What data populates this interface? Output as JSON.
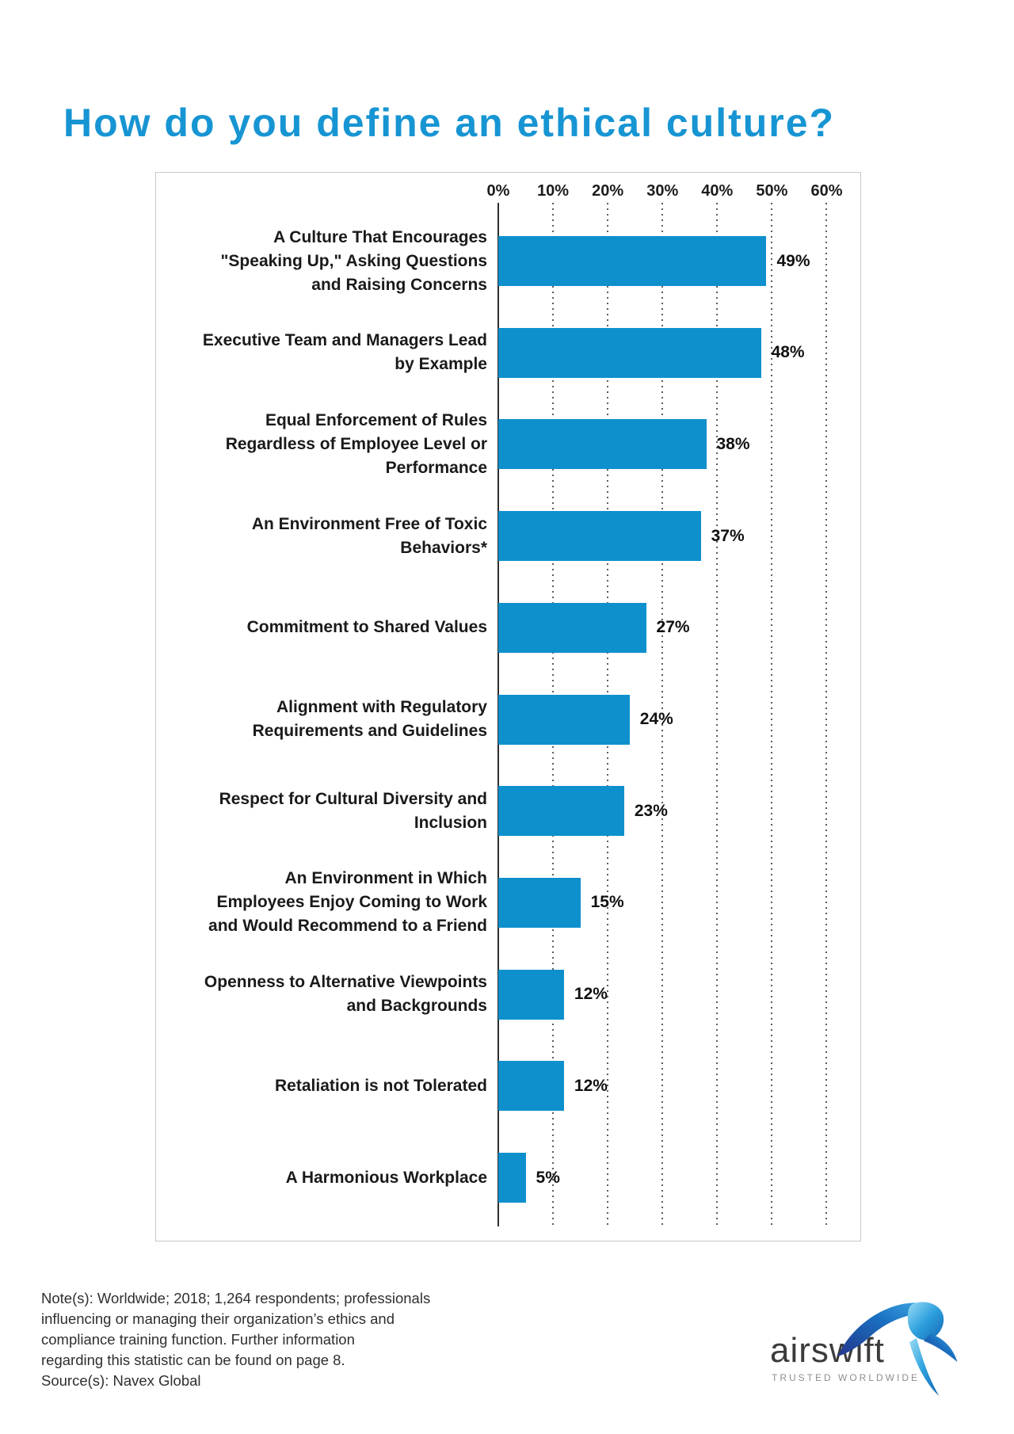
{
  "page": {
    "title": "How do you define an ethical culture?"
  },
  "chart_data": {
    "type": "bar",
    "orientation": "horizontal",
    "title": "How do you define an ethical culture?",
    "categories": [
      "A Culture That Encourages \"Speaking Up,\" Asking Questions and Raising Concerns",
      "Executive Team and Managers Lead by Example",
      "Equal Enforcement of Rules Regardless of Employee Level or Performance",
      "An Environment Free of Toxic Behaviors*",
      "Commitment to Shared Values",
      "Alignment with Regulatory Requirements and Guidelines",
      "Respect for Cultural Diversity and Inclusion",
      "An Environment in Which Employees Enjoy Coming to Work and Would Recommend to a Friend",
      "Openness to Alternative Viewpoints and Backgrounds",
      "Retaliation is not Tolerated",
      "A Harmonious Workplace"
    ],
    "category_lines": [
      [
        "A Culture That Encourages",
        "\"Speaking Up,\" Asking Questions",
        "and Raising Concerns"
      ],
      [
        "Executive Team and Managers Lead",
        "by Example"
      ],
      [
        "Equal Enforcement of Rules",
        "Regardless of Employee Level or",
        "Performance"
      ],
      [
        "An Environment Free of Toxic",
        "Behaviors*"
      ],
      [
        "Commitment to Shared Values"
      ],
      [
        "Alignment with Regulatory",
        "Requirements and Guidelines"
      ],
      [
        "Respect for Cultural Diversity and",
        "Inclusion"
      ],
      [
        "An Environment in Which",
        "Employees Enjoy Coming to Work",
        "and Would Recommend to a Friend"
      ],
      [
        "Openness to Alternative Viewpoints",
        "and Backgrounds"
      ],
      [
        "Retaliation is not Tolerated"
      ],
      [
        "A Harmonious Workplace"
      ]
    ],
    "values": [
      49,
      48,
      38,
      37,
      27,
      24,
      23,
      15,
      12,
      12,
      5
    ],
    "value_labels": [
      "49%",
      "48%",
      "38%",
      "37%",
      "27%",
      "24%",
      "23%",
      "15%",
      "12%",
      "12%",
      "5%"
    ],
    "x_ticks": [
      "0%",
      "10%",
      "20%",
      "30%",
      "40%",
      "50%",
      "60%"
    ],
    "x_tick_values": [
      0,
      10,
      20,
      30,
      40,
      50,
      60
    ],
    "xlim": [
      0,
      63
    ],
    "grid": "dotted-vertical-at-ticks",
    "legend": "none",
    "bar_color": "#0e90cd",
    "value_label_position": "right-of-bar"
  },
  "footer": {
    "note_lines": [
      "Note(s): Worldwide; 2018; 1,264 respondents; professionals",
      "influencing or managing their organization’s ethics and",
      "compliance training function. Further information",
      "regarding this statistic can be found on page 8.",
      "Source(s): Navex Global"
    ],
    "logo": {
      "name": "airswift",
      "tagline": "TRUSTED WORLDWIDE"
    }
  },
  "colors": {
    "title_blue": "#1795d3",
    "bar_blue": "#0e90cd",
    "text_dark": "#1a1a1a",
    "frame_border": "#c9c9c9",
    "note_text": "#2f2f2f",
    "tagline_gray": "#8e8e8e"
  }
}
